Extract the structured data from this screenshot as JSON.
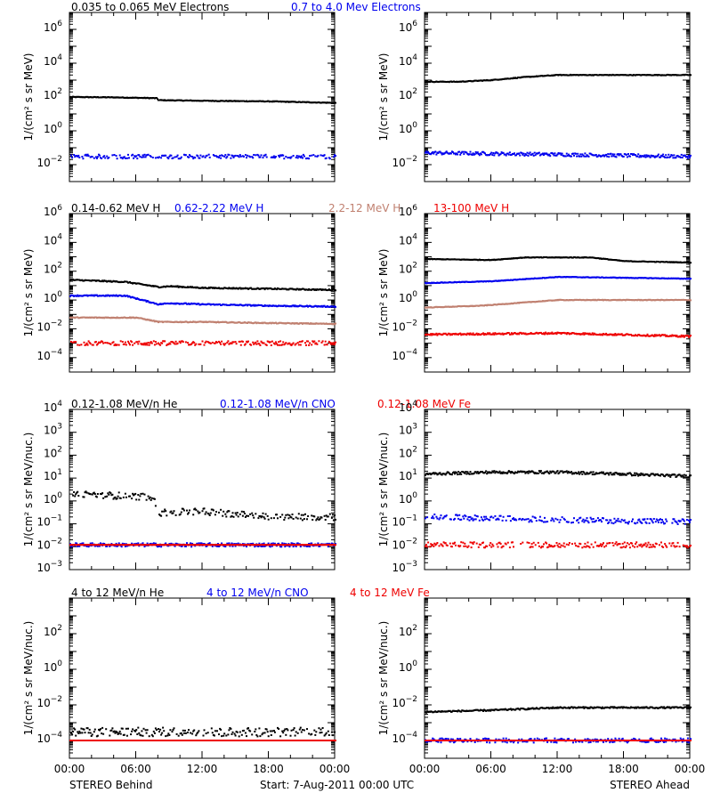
{
  "colors": {
    "black": "#000000",
    "blue": "#0000ee",
    "tan": "#c08070",
    "red": "#ee0000"
  },
  "footer": {
    "left": "STEREO Behind",
    "center": "Start:   7-Aug-2011 00:00 UTC",
    "right": "STEREO Ahead",
    "time_ticks": [
      "00:00",
      "06:00",
      "12:00",
      "18:00",
      "00:00"
    ]
  },
  "rows": [
    {
      "legend": [
        {
          "text": "0.035 to 0.065 MeV Electrons",
          "color": "black"
        },
        {
          "text": "0.7 to 4.0 Mev Electrons",
          "color": "blue"
        }
      ],
      "ylabel": "1/(cm² s sr MeV)"
    },
    {
      "legend": [
        {
          "text": "0.14-0.62 MeV H",
          "color": "black"
        },
        {
          "text": "0.62-2.22 MeV H",
          "color": "blue"
        },
        {
          "text": "2.2-12 MeV H",
          "color": "tan"
        },
        {
          "text": "13-100 MeV H",
          "color": "red"
        }
      ],
      "ylabel": "1/(cm² s sr MeV)"
    },
    {
      "legend": [
        {
          "text": "0.12-1.08 MeV/n He",
          "color": "black"
        },
        {
          "text": "0.12-1.08 MeV/n CNO",
          "color": "blue"
        },
        {
          "text": "0.12-1.08 MeV Fe",
          "color": "red"
        }
      ],
      "ylabel": "1/(cm² s sr MeV/nuc.)"
    },
    {
      "legend": [
        {
          "text": "4 to 12 MeV/n He",
          "color": "black"
        },
        {
          "text": "4 to 12 MeV/n CNO",
          "color": "blue"
        },
        {
          "text": "4 to 12 MeV Fe",
          "color": "red"
        }
      ],
      "ylabel": "1/(cm² s sr MeV/nuc.)"
    }
  ],
  "chart_data": [
    {
      "panel": "electrons-behind",
      "type": "scatter",
      "yscale": "log",
      "ylim_exp": [
        -3,
        7
      ],
      "ytick_exps": [
        -2,
        0,
        2,
        4,
        6
      ],
      "xlim": [
        "00:00",
        "24:00"
      ],
      "series": [
        {
          "color": "black",
          "points": [
            [
              0,
              100
            ],
            [
              4,
              95
            ],
            [
              7.8,
              85
            ],
            [
              8,
              65
            ],
            [
              12,
              60
            ],
            [
              18,
              55
            ],
            [
              24,
              45
            ]
          ],
          "jitter": 0.02
        },
        {
          "color": "blue",
          "points": [
            [
              0,
              0.03
            ],
            [
              12,
              0.03
            ],
            [
              24,
              0.03
            ]
          ],
          "jitter": 0.12
        }
      ]
    },
    {
      "panel": "electrons-ahead",
      "type": "scatter",
      "yscale": "log",
      "ylim_exp": [
        -3,
        7
      ],
      "ytick_exps": [
        -2,
        0,
        2,
        4,
        6
      ],
      "xlim": [
        "00:00",
        "24:00"
      ],
      "series": [
        {
          "color": "black",
          "points": [
            [
              0,
              800
            ],
            [
              3,
              800
            ],
            [
              6,
              1000
            ],
            [
              9,
              1500
            ],
            [
              12,
              2000
            ],
            [
              18,
              2000
            ],
            [
              24,
              2000
            ]
          ],
          "jitter": 0.02
        },
        {
          "color": "blue",
          "points": [
            [
              0,
              0.05
            ],
            [
              12,
              0.04
            ],
            [
              24,
              0.03
            ]
          ],
          "jitter": 0.1
        }
      ]
    },
    {
      "panel": "protons-behind",
      "type": "scatter",
      "yscale": "log",
      "ylim_exp": [
        -5,
        6
      ],
      "ytick_exps": [
        -4,
        -2,
        0,
        2,
        4,
        6
      ],
      "xlim": [
        "00:00",
        "24:00"
      ],
      "series": [
        {
          "color": "black",
          "points": [
            [
              0,
              25
            ],
            [
              5,
              18
            ],
            [
              8,
              8
            ],
            [
              9,
              9
            ],
            [
              12,
              7
            ],
            [
              18,
              6
            ],
            [
              24,
              5
            ]
          ],
          "jitter": 0.04
        },
        {
          "color": "blue",
          "points": [
            [
              0,
              2
            ],
            [
              5,
              2
            ],
            [
              8,
              0.5
            ],
            [
              9,
              0.6
            ],
            [
              12,
              0.5
            ],
            [
              18,
              0.4
            ],
            [
              24,
              0.35
            ]
          ],
          "jitter": 0.04
        },
        {
          "color": "tan",
          "points": [
            [
              0,
              0.06
            ],
            [
              6,
              0.06
            ],
            [
              8,
              0.03
            ],
            [
              12,
              0.03
            ],
            [
              18,
              0.025
            ],
            [
              24,
              0.022
            ]
          ],
          "jitter": 0.03
        },
        {
          "color": "red",
          "points": [
            [
              0,
              0.001
            ],
            [
              12,
              0.001
            ],
            [
              24,
              0.001
            ]
          ],
          "jitter": 0.15
        }
      ]
    },
    {
      "panel": "protons-ahead",
      "type": "scatter",
      "yscale": "log",
      "ylim_exp": [
        -5,
        6
      ],
      "ytick_exps": [
        -4,
        -2,
        0,
        2,
        4,
        6
      ],
      "xlim": [
        "00:00",
        "24:00"
      ],
      "series": [
        {
          "color": "black",
          "points": [
            [
              0,
              700
            ],
            [
              6,
              600
            ],
            [
              9,
              900
            ],
            [
              15,
              900
            ],
            [
              18,
              500
            ],
            [
              24,
              400
            ]
          ],
          "jitter": 0.02
        },
        {
          "color": "blue",
          "points": [
            [
              0,
              15
            ],
            [
              6,
              20
            ],
            [
              12,
              40
            ],
            [
              18,
              35
            ],
            [
              24,
              30
            ]
          ],
          "jitter": 0.02
        },
        {
          "color": "tan",
          "points": [
            [
              0,
              0.3
            ],
            [
              5,
              0.4
            ],
            [
              12,
              1
            ],
            [
              24,
              1
            ]
          ],
          "jitter": 0.02
        },
        {
          "color": "red",
          "points": [
            [
              0,
              0.004
            ],
            [
              12,
              0.005
            ],
            [
              24,
              0.003
            ]
          ],
          "jitter": 0.06
        }
      ]
    },
    {
      "panel": "heavy-low-behind",
      "type": "scatter",
      "yscale": "log",
      "ylim_exp": [
        -3,
        4
      ],
      "ytick_exps": [
        -3,
        -2,
        -1,
        0,
        1,
        2,
        3,
        4
      ],
      "xlim": [
        "00:00",
        "24:00"
      ],
      "series": [
        {
          "color": "black",
          "points": [
            [
              0,
              2
            ],
            [
              7.5,
              1.5
            ],
            [
              8,
              0.3
            ],
            [
              12,
              0.35
            ],
            [
              18,
              0.2
            ],
            [
              24,
              0.2
            ]
          ],
          "jitter": 0.15
        },
        {
          "color": "blue",
          "points": [
            [
              0,
              0.012
            ],
            [
              24,
              0.012
            ]
          ],
          "jitter": 0.08
        },
        {
          "color": "red",
          "points": [
            [
              0,
              0.012
            ],
            [
              24,
              0.012
            ]
          ],
          "jitter": 0.0
        }
      ]
    },
    {
      "panel": "heavy-low-ahead",
      "type": "scatter",
      "yscale": "log",
      "ylim_exp": [
        -3,
        4
      ],
      "ytick_exps": [
        -3,
        -2,
        -1,
        0,
        1,
        2,
        3,
        4
      ],
      "xlim": [
        "00:00",
        "24:00"
      ],
      "series": [
        {
          "color": "black",
          "points": [
            [
              0,
              15
            ],
            [
              6,
              18
            ],
            [
              12,
              18
            ],
            [
              18,
              15
            ],
            [
              24,
              12
            ]
          ],
          "jitter": 0.06
        },
        {
          "color": "blue",
          "points": [
            [
              0,
              0.2
            ],
            [
              12,
              0.15
            ],
            [
              24,
              0.12
            ]
          ],
          "jitter": 0.12
        },
        {
          "color": "red",
          "points": [
            [
              0,
              0.012
            ],
            [
              24,
              0.012
            ]
          ],
          "jitter": 0.12
        }
      ]
    },
    {
      "panel": "heavy-high-behind",
      "type": "scatter",
      "yscale": "log",
      "ylim_exp": [
        -5,
        4
      ],
      "ytick_exps": [
        -4,
        -2,
        0,
        2
      ],
      "xlim": [
        "00:00",
        "24:00"
      ],
      "series": [
        {
          "color": "black",
          "points": [
            [
              0,
              0.0003
            ],
            [
              12,
              0.0003
            ],
            [
              24,
              0.0003
            ]
          ],
          "jitter": 0.25
        },
        {
          "color": "blue",
          "points": [
            [
              0,
              0.0001
            ],
            [
              24,
              0.0001
            ]
          ],
          "jitter": 0.0
        },
        {
          "color": "red",
          "points": [
            [
              0,
              0.0001
            ],
            [
              24,
              0.0001
            ]
          ],
          "jitter": 0.0
        }
      ]
    },
    {
      "panel": "heavy-high-ahead",
      "type": "scatter",
      "yscale": "log",
      "ylim_exp": [
        -5,
        4
      ],
      "ytick_exps": [
        -4,
        -2,
        0,
        2
      ],
      "xlim": [
        "00:00",
        "24:00"
      ],
      "series": [
        {
          "color": "black",
          "points": [
            [
              0,
              0.004
            ],
            [
              6,
              0.005
            ],
            [
              12,
              0.007
            ],
            [
              18,
              0.007
            ],
            [
              24,
              0.007
            ]
          ],
          "jitter": 0.04
        },
        {
          "color": "blue",
          "points": [
            [
              0,
              0.0001
            ],
            [
              24,
              0.0001
            ]
          ],
          "jitter": 0.12
        },
        {
          "color": "red",
          "points": [
            [
              0,
              0.0001
            ],
            [
              24,
              0.0001
            ]
          ],
          "jitter": 0.0
        }
      ]
    }
  ]
}
